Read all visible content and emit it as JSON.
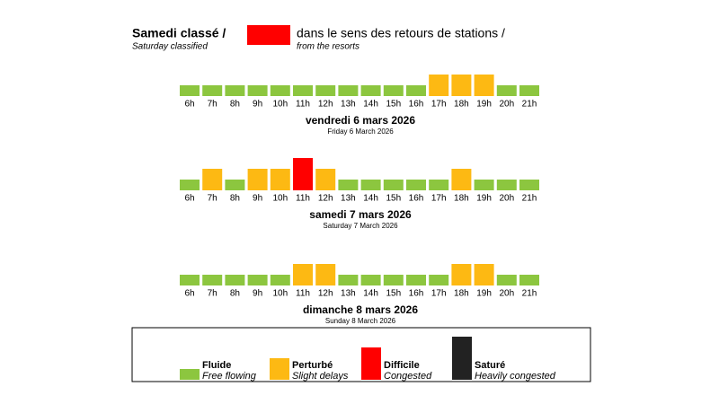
{
  "header": {
    "title": "Samedi classé /",
    "subtitle": "Saturday classified",
    "direction": "dans le sens des retours de stations /",
    "direction_en": "from the resorts",
    "color": "#ff0000"
  },
  "legend": [
    {
      "name": "Fluide",
      "description": "Free flowing",
      "color": "#8cc63f",
      "value": 1
    },
    {
      "name": "Perturbé",
      "description": "Slight delays",
      "color": "#fdb913",
      "value": 2
    },
    {
      "name": "Difficile",
      "description": "Congested",
      "color": "#ff0000",
      "value": 3
    },
    {
      "name": "Saturé",
      "description": "Heavily congested",
      "color": "#222222",
      "value": 4
    }
  ],
  "chart_data": [
    {
      "type": "bar",
      "title": "vendredi 6 mars 2026",
      "subtitle": "Friday 6 March 2026",
      "categories": [
        "6h",
        "7h",
        "8h",
        "9h",
        "10h",
        "11h",
        "12h",
        "13h",
        "14h",
        "15h",
        "16h",
        "17h",
        "18h",
        "19h",
        "20h",
        "21h"
      ],
      "values": [
        1,
        1,
        1,
        1,
        1,
        1,
        1,
        1,
        1,
        1,
        1,
        2,
        2,
        2,
        1,
        1
      ]
    },
    {
      "type": "bar",
      "title": "samedi 7 mars 2026",
      "subtitle": "Saturday 7 March 2026",
      "categories": [
        "6h",
        "7h",
        "8h",
        "9h",
        "10h",
        "11h",
        "12h",
        "13h",
        "14h",
        "15h",
        "16h",
        "17h",
        "18h",
        "19h",
        "20h",
        "21h"
      ],
      "values": [
        1,
        2,
        1,
        2,
        2,
        3,
        2,
        1,
        1,
        1,
        1,
        1,
        2,
        1,
        1,
        1
      ]
    },
    {
      "type": "bar",
      "title": "dimanche 8 mars 2026",
      "subtitle": "Sunday 8 March 2026",
      "categories": [
        "6h",
        "7h",
        "8h",
        "9h",
        "10h",
        "11h",
        "12h",
        "13h",
        "14h",
        "15h",
        "16h",
        "17h",
        "18h",
        "19h",
        "20h",
        "21h"
      ],
      "values": [
        1,
        1,
        1,
        1,
        1,
        2,
        2,
        1,
        1,
        1,
        1,
        1,
        2,
        2,
        1,
        1
      ]
    }
  ]
}
